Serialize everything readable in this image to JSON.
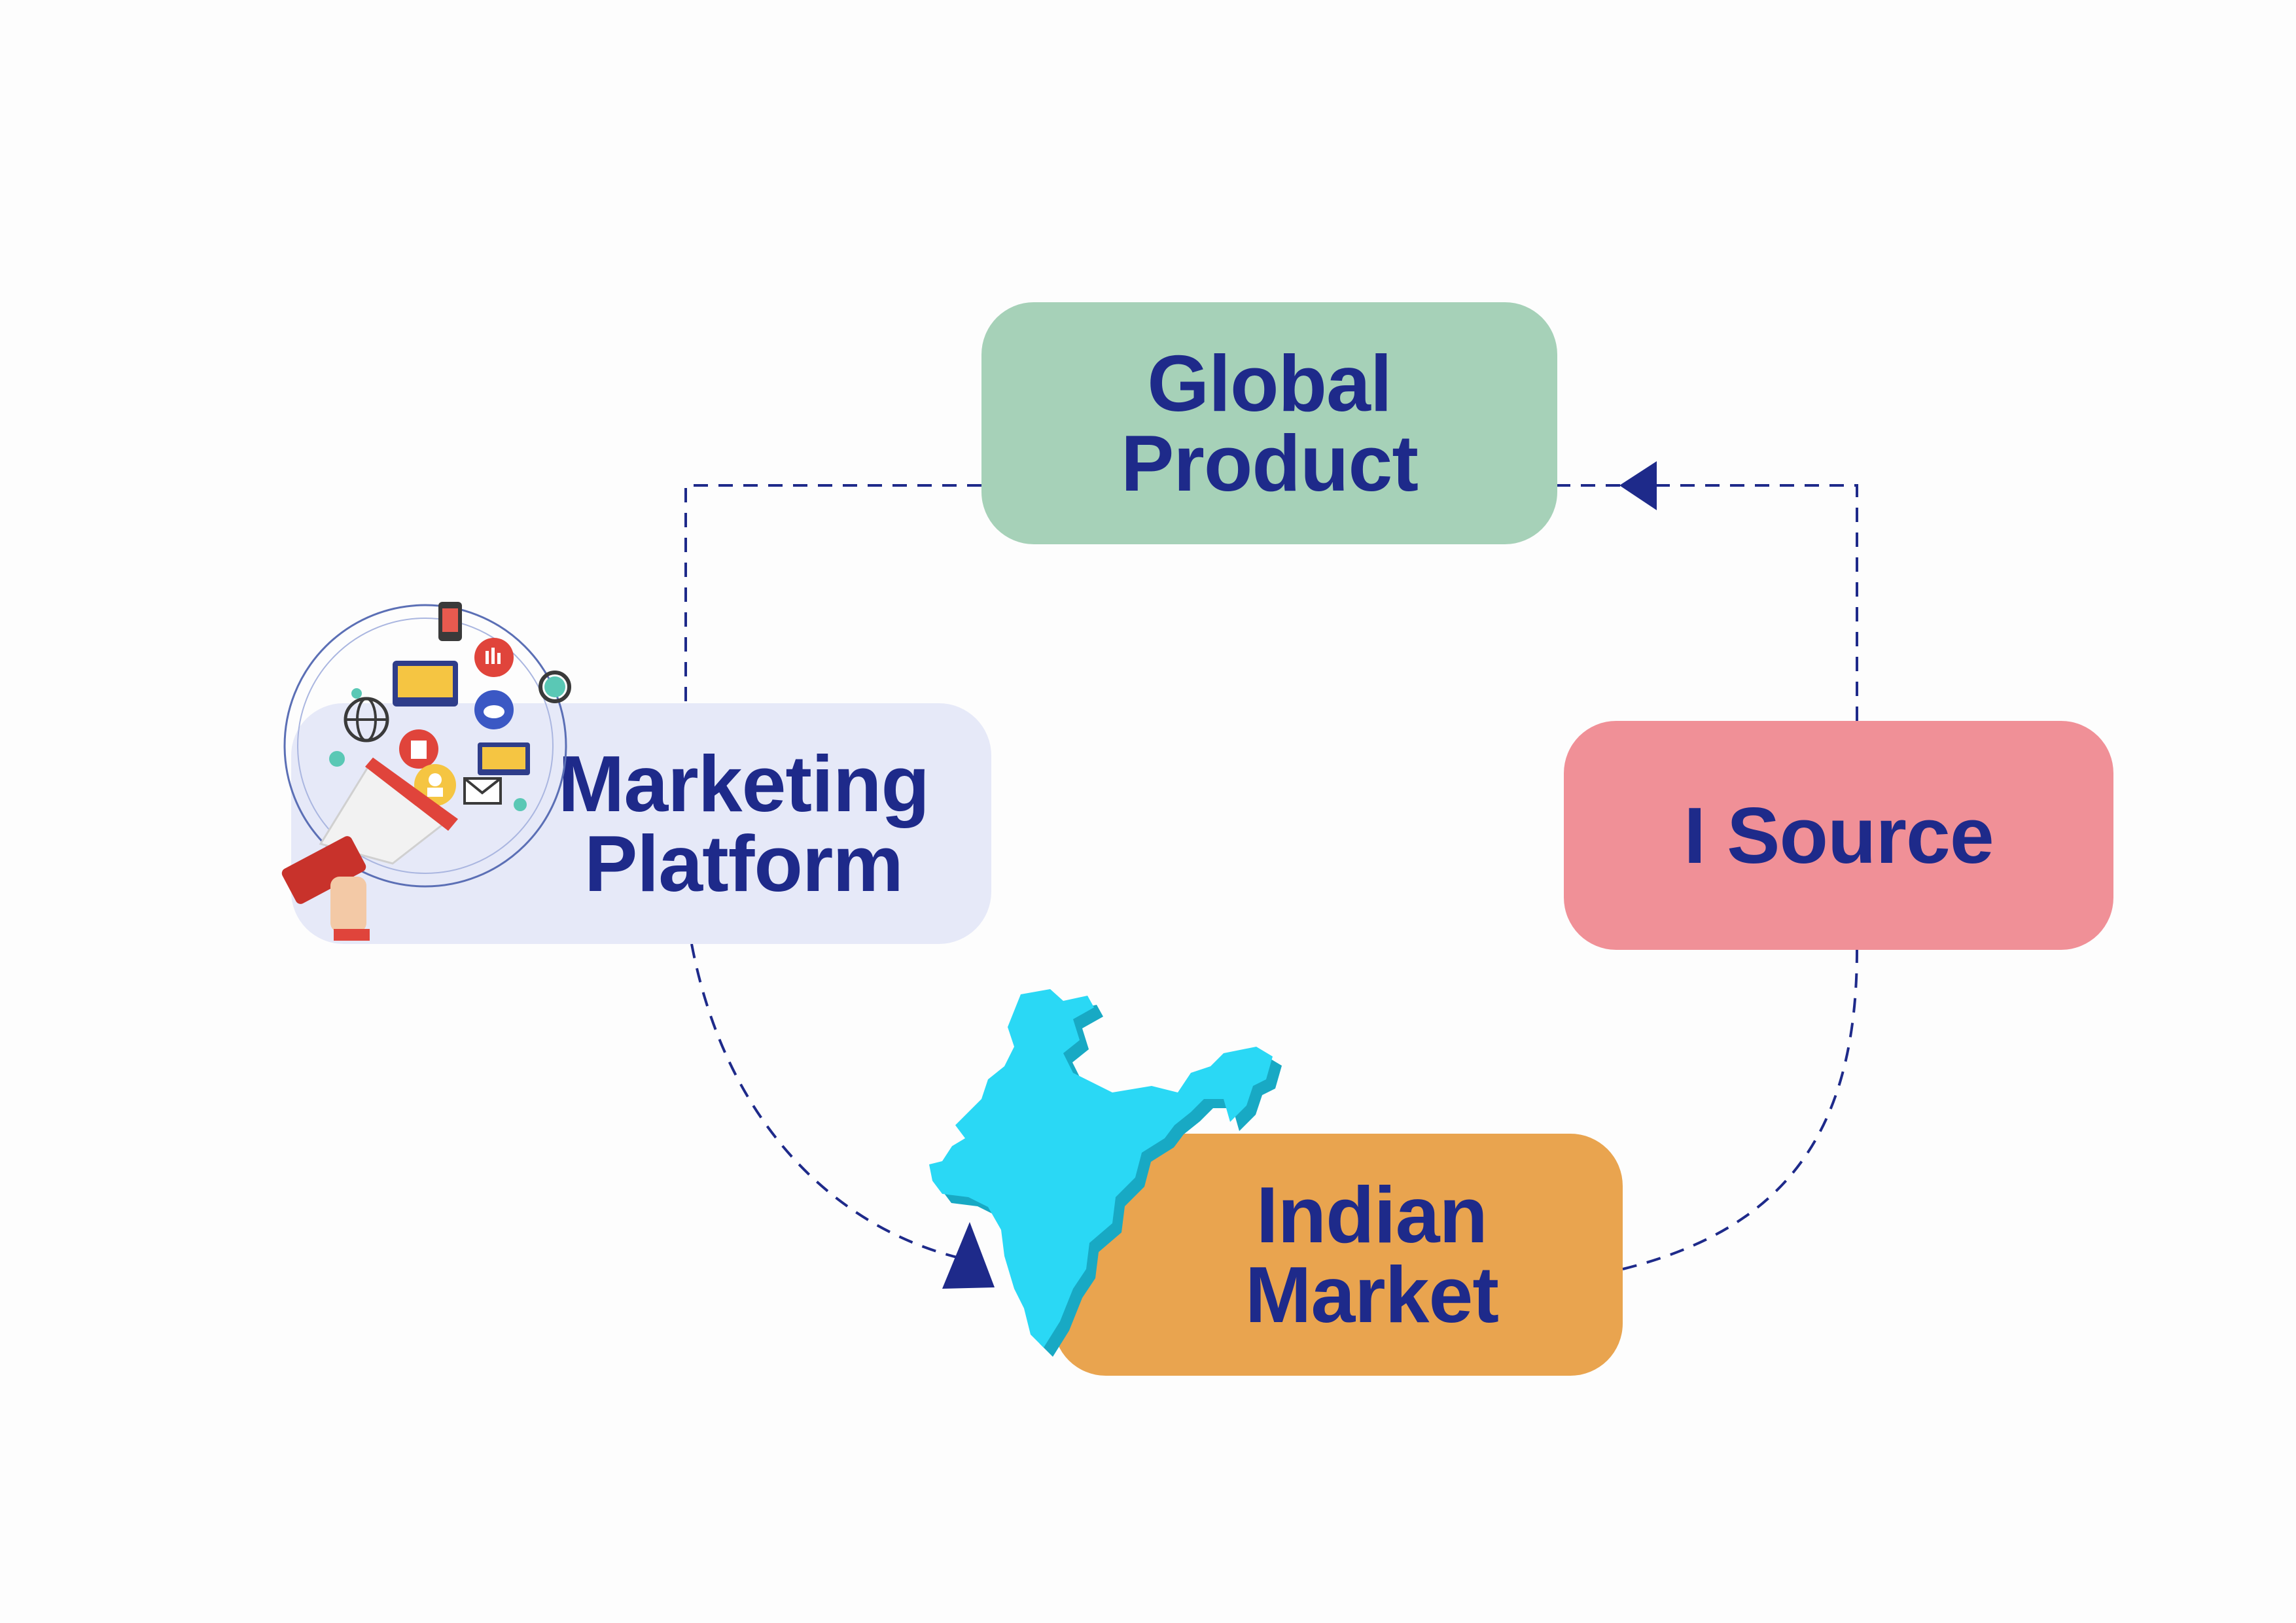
{
  "colors": {
    "text": "#1e2a8a",
    "connector": "#1e2a8a",
    "global_product_fill": "#a6d1b8",
    "isource_fill": "#f09097",
    "marketing_platform_fill": "#e6e9f8",
    "indian_market_fill": "#e9a44f",
    "india_map_fill": "#2ad8f5",
    "india_map_side": "#18a9c4"
  },
  "nodes": {
    "global_product": {
      "label": "Global\nProduct"
    },
    "isource": {
      "label": "I Source"
    },
    "marketing_platform": {
      "label": "Marketing\nPlatform",
      "icon": "megaphone-digital-marketing-icon"
    },
    "indian_market": {
      "label": "Indian\nMarket",
      "icon": "india-map-icon"
    }
  },
  "edges": [
    {
      "from": "I Source",
      "to": "Global Product",
      "style": "dashed",
      "arrow": "end"
    },
    {
      "from": "Global Product",
      "to": "Marketing Platform",
      "style": "dashed",
      "arrow": "none"
    },
    {
      "from": "Marketing Platform",
      "to": "Indian Market",
      "style": "dashed",
      "arrow": "end"
    },
    {
      "from": "Indian Market",
      "to": "I Source",
      "style": "dashed",
      "arrow": "none"
    }
  ]
}
